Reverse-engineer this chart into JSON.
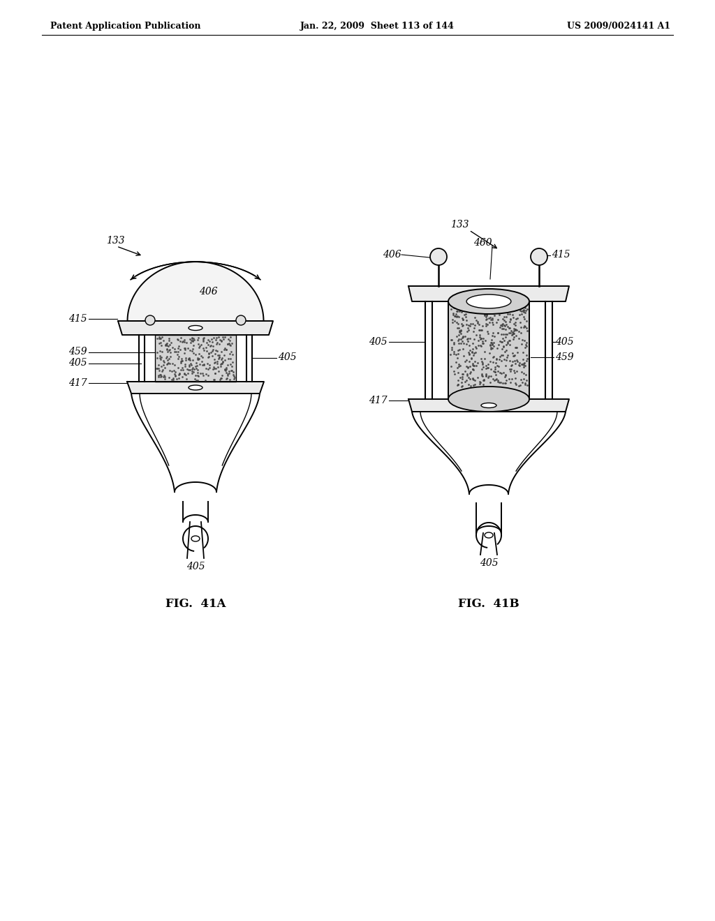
{
  "bg_color": "#ffffff",
  "header_left": "Patent Application Publication",
  "header_mid": "Jan. 22, 2009  Sheet 113 of 144",
  "header_right": "US 2009/0024141 A1",
  "fig_a_label": "FIG.  41A",
  "fig_b_label": "FIG.  41B",
  "line_color": "#000000",
  "text_color": "#000000"
}
